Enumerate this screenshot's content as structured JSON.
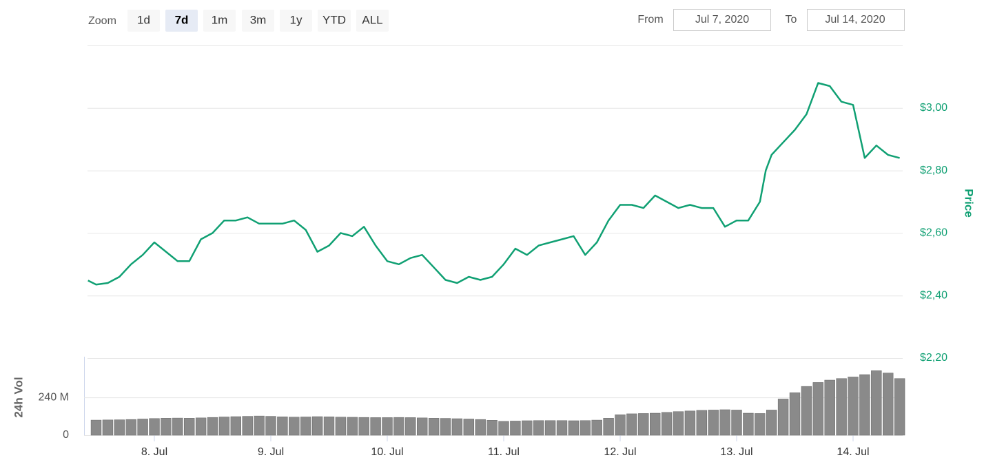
{
  "controls": {
    "zoom_label": "Zoom",
    "zoom_buttons": [
      {
        "label": "1d"
      },
      {
        "label": "7d",
        "active": true
      },
      {
        "label": "1m"
      },
      {
        "label": "3m"
      },
      {
        "label": "1y"
      },
      {
        "label": "YTD"
      },
      {
        "label": "ALL"
      }
    ],
    "from_label": "From",
    "from_value": "Jul 7, 2020",
    "to_label": "To",
    "to_value": "Jul 14, 2020"
  },
  "chart_data": [
    {
      "type": "line",
      "y_label": "Price",
      "color": "#10a073",
      "xlim": [
        7.426,
        14.426
      ],
      "ylim": [
        2.2,
        3.2
      ],
      "yticks": [
        {
          "value": 2.2,
          "label": "$2,20"
        },
        {
          "value": 2.4,
          "label": "$2,40"
        },
        {
          "value": 2.6,
          "label": "$2,60"
        },
        {
          "value": 2.8,
          "label": "$2,80"
        },
        {
          "value": 3.0,
          "label": "$3,00"
        }
      ],
      "grid": true,
      "x": [
        7.43,
        7.5,
        7.6,
        7.7,
        7.8,
        7.9,
        8.0,
        8.1,
        8.2,
        8.3,
        8.4,
        8.5,
        8.6,
        8.7,
        8.8,
        8.9,
        9.0,
        9.1,
        9.2,
        9.3,
        9.4,
        9.5,
        9.6,
        9.7,
        9.8,
        9.9,
        10.0,
        10.1,
        10.2,
        10.3,
        10.4,
        10.5,
        10.6,
        10.7,
        10.8,
        10.9,
        11.0,
        11.1,
        11.2,
        11.3,
        11.4,
        11.5,
        11.6,
        11.7,
        11.8,
        11.9,
        12.0,
        12.1,
        12.2,
        12.3,
        12.4,
        12.5,
        12.6,
        12.7,
        12.8,
        12.9,
        13.0,
        13.1,
        13.2,
        13.25,
        13.3,
        13.4,
        13.5,
        13.6,
        13.7,
        13.8,
        13.9,
        14.0,
        14.1,
        14.2,
        14.3,
        14.4
      ],
      "values": [
        2.448,
        2.435,
        2.44,
        2.46,
        2.5,
        2.53,
        2.57,
        2.54,
        2.51,
        2.51,
        2.58,
        2.6,
        2.64,
        2.64,
        2.65,
        2.63,
        2.63,
        2.63,
        2.64,
        2.61,
        2.54,
        2.56,
        2.6,
        2.59,
        2.62,
        2.56,
        2.51,
        2.5,
        2.52,
        2.53,
        2.49,
        2.45,
        2.44,
        2.46,
        2.45,
        2.46,
        2.5,
        2.55,
        2.53,
        2.56,
        2.57,
        2.58,
        2.59,
        2.53,
        2.57,
        2.64,
        2.69,
        2.69,
        2.68,
        2.72,
        2.7,
        2.68,
        2.69,
        2.68,
        2.68,
        2.62,
        2.64,
        2.64,
        2.7,
        2.8,
        2.85,
        2.89,
        2.93,
        2.98,
        3.08,
        3.07,
        3.02,
        3.01,
        2.84,
        2.88,
        2.85,
        2.84
      ]
    },
    {
      "type": "bar",
      "y_label": "24h Vol",
      "color": "#8a8a8a",
      "xlim": [
        7.426,
        14.426
      ],
      "xticks": [
        {
          "value": 8,
          "label": "8. Jul"
        },
        {
          "value": 9,
          "label": "9. Jul"
        },
        {
          "value": 10,
          "label": "10. Jul"
        },
        {
          "value": 11,
          "label": "11. Jul"
        },
        {
          "value": 12,
          "label": "12. Jul"
        },
        {
          "value": 13,
          "label": "13. Jul"
        },
        {
          "value": 14,
          "label": "14. Jul"
        }
      ],
      "ylim": [
        0,
        490
      ],
      "yticks": [
        0,
        {
          "value": 240,
          "label": "240 M"
        }
      ],
      "grid": true,
      "x": [
        7.5,
        7.6,
        7.7,
        7.8,
        7.9,
        8.0,
        8.1,
        8.2,
        8.3,
        8.4,
        8.5,
        8.6,
        8.7,
        8.8,
        8.9,
        9.0,
        9.1,
        9.2,
        9.3,
        9.4,
        9.5,
        9.6,
        9.7,
        9.8,
        9.9,
        10.0,
        10.1,
        10.2,
        10.3,
        10.4,
        10.5,
        10.6,
        10.7,
        10.8,
        10.9,
        11.0,
        11.1,
        11.2,
        11.3,
        11.4,
        11.5,
        11.6,
        11.7,
        11.8,
        11.9,
        12.0,
        12.1,
        12.2,
        12.3,
        12.4,
        12.5,
        12.6,
        12.7,
        12.8,
        12.9,
        13.0,
        13.1,
        13.2,
        13.3,
        13.4,
        13.5,
        13.6,
        13.7,
        13.8,
        13.9,
        14.0,
        14.1,
        14.2,
        14.3,
        14.4
      ],
      "values": [
        96,
        97,
        98,
        100,
        103,
        106,
        108,
        109,
        108,
        110,
        113,
        116,
        118,
        120,
        122,
        120,
        117,
        115,
        116,
        118,
        117,
        115,
        114,
        113,
        112,
        112,
        113,
        112,
        110,
        108,
        107,
        105,
        103,
        100,
        95,
        88,
        90,
        92,
        93,
        93,
        93,
        92,
        93,
        96,
        108,
        130,
        136,
        138,
        140,
        145,
        150,
        154,
        158,
        160,
        162,
        160,
        140,
        138,
        160,
        230,
        270,
        310,
        335,
        350,
        360,
        370,
        385,
        410,
        395,
        360
      ]
    }
  ]
}
